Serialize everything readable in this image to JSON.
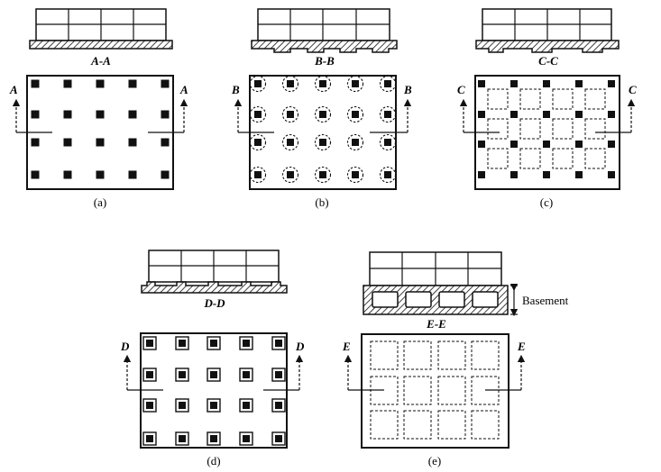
{
  "panels": {
    "a": {
      "section": "A-A",
      "cut": "A",
      "caption": "(a)"
    },
    "b": {
      "section": "B-B",
      "cut": "B",
      "caption": "(b)"
    },
    "c": {
      "section": "C-C",
      "cut": "C",
      "caption": "(c)"
    },
    "d": {
      "section": "D-D",
      "cut": "D",
      "caption": "(d)"
    },
    "e": {
      "section": "E-E",
      "cut": "E",
      "caption": "(e)"
    }
  },
  "basement_label": "Basement",
  "colors": {
    "ink": "#111111",
    "paper": "#ffffff"
  }
}
